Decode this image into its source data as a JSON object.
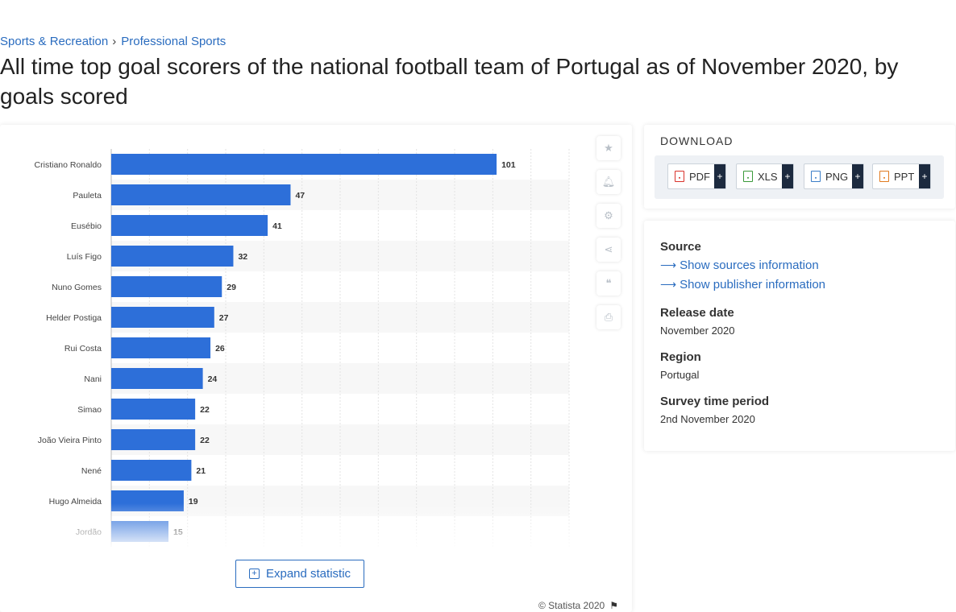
{
  "breadcrumb": {
    "items": [
      "Sports & Recreation",
      "Professional Sports"
    ],
    "separator": "›"
  },
  "page": {
    "title": "All time top goal scorers of the national football team of Portugal as of November 2020, by goals scored"
  },
  "chart_data": {
    "type": "bar",
    "orientation": "horizontal",
    "categories": [
      "Cristiano Ronaldo",
      "Pauleta",
      "Eusébio",
      "Luís Figo",
      "Nuno Gomes",
      "Helder Postiga",
      "Rui Costa",
      "Nani",
      "Simao",
      "João Vieira Pinto",
      "Nené",
      "Hugo Almeida",
      "Jordão"
    ],
    "values": [
      101,
      47,
      41,
      32,
      29,
      27,
      26,
      24,
      22,
      22,
      21,
      19,
      15
    ],
    "xlim": [
      0,
      120
    ],
    "grid": true,
    "color": "#2d6fd9",
    "data_labels": true
  },
  "tools": [
    "star-icon",
    "bell-icon",
    "gear-icon",
    "share-icon",
    "quote-icon",
    "print-icon"
  ],
  "expand": {
    "label": "Expand statistic"
  },
  "copyright": "© Statista 2020",
  "download": {
    "title": "DOWNLOAD",
    "buttons": [
      {
        "label": "PDF",
        "icon": "pdf-file-icon",
        "color": "#d9322b"
      },
      {
        "label": "XLS",
        "icon": "xls-file-icon",
        "color": "#3a9a3a"
      },
      {
        "label": "PNG",
        "icon": "png-file-icon",
        "color": "#3b7ec8"
      },
      {
        "label": "PPT",
        "icon": "ppt-file-icon",
        "color": "#e07a1f"
      }
    ],
    "plus": "+"
  },
  "info": {
    "source_label": "Source",
    "show_sources": "Show sources information",
    "show_publisher": "Show publisher information",
    "release_label": "Release date",
    "release_value": "November 2020",
    "region_label": "Region",
    "region_value": "Portugal",
    "survey_label": "Survey time period",
    "survey_value": "2nd November 2020"
  }
}
